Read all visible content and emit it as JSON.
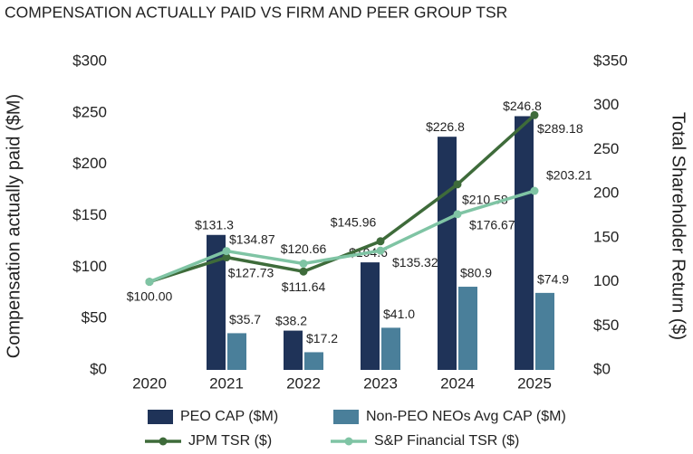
{
  "chart_data": {
    "type": "bar-line",
    "title": "COMPENSATION ACTUALLY PAID VS FIRM AND PEER GROUP TSR",
    "y_label": "Compensation actually paid ($M)",
    "y2_label": "Total Shareholder Return ($)",
    "categories": [
      "2020",
      "2021",
      "2022",
      "2023",
      "2024",
      "2025"
    ],
    "ylim": [
      0,
      300
    ],
    "yticks": [
      {
        "value": 0,
        "label": "$0"
      },
      {
        "value": 50,
        "label": "$50"
      },
      {
        "value": 100,
        "label": "$100"
      },
      {
        "value": 150,
        "label": "$150"
      },
      {
        "value": 200,
        "label": "$200"
      },
      {
        "value": 250,
        "label": "$250"
      },
      {
        "value": 300,
        "label": "$300"
      }
    ],
    "y2lim": [
      0,
      350
    ],
    "y2ticks": [
      {
        "value": 0,
        "label": "$0"
      },
      {
        "value": 50,
        "label": "$50"
      },
      100,
      150,
      200,
      250,
      300,
      {
        "value": 350,
        "label": "$350"
      }
    ],
    "series": [
      {
        "name": "PEO CAP ($M)",
        "kind": "bar",
        "color": "#1f3358",
        "values": [
          null,
          131.3,
          38.2,
          104.6,
          226.8,
          246.8
        ],
        "value_labels": [
          null,
          "$131.3",
          "$38.2",
          "$104.6",
          "$226.8",
          "$246.8"
        ]
      },
      {
        "name": "Non-PEO  NEOs Avg CAP ($M)",
        "kind": "bar",
        "color": "#4a7f9a",
        "values": [
          null,
          35.7,
          17.2,
          41.0,
          80.9,
          74.9
        ],
        "value_labels": [
          null,
          "$35.7",
          "$17.2",
          "$41.0",
          "$80.9",
          "$74.9"
        ]
      },
      {
        "name": "JPM TSR ($)",
        "kind": "line",
        "axis": "y2",
        "color": "#3e6b3a",
        "values": [
          100.0,
          127.73,
          111.64,
          145.96,
          210.58,
          289.18
        ],
        "value_labels": [
          "$100.00",
          "$127.73",
          "$111.64",
          "$145.96",
          "$210.58",
          "$289.18"
        ]
      },
      {
        "name": "S&P Financial TSR ($)",
        "kind": "line",
        "axis": "y2",
        "color": "#7fc4a4",
        "values": [
          100.0,
          134.87,
          120.66,
          135.32,
          176.67,
          203.21
        ],
        "value_labels": [
          null,
          "$134.87",
          "$120.66",
          "$135.32",
          "$176.67",
          "$203.21"
        ]
      }
    ]
  }
}
